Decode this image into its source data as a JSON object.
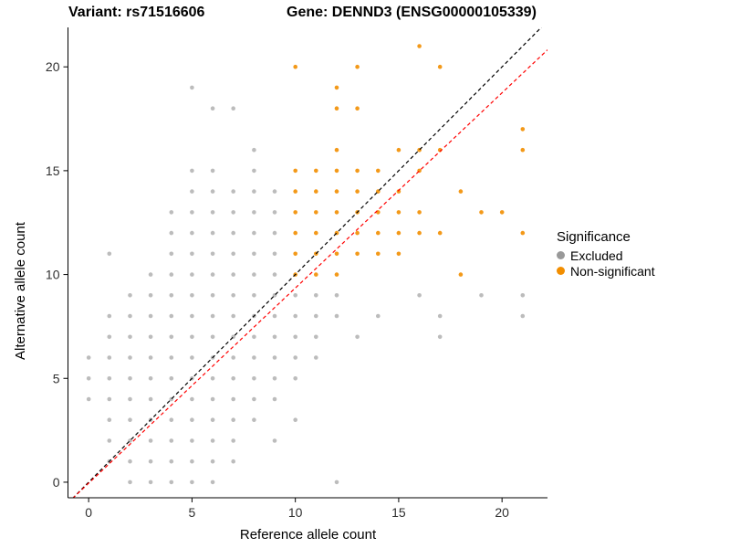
{
  "chart_data": {
    "type": "scatter",
    "title_left": "Variant: rs71516606",
    "title_right": "Gene: DENND3 (ENSG00000105339)",
    "xlabel": "Reference allele count",
    "ylabel": "Alternative allele count",
    "xlim": [
      -1,
      22.2
    ],
    "ylim": [
      -0.75,
      21.9
    ],
    "xticks": [
      "0",
      "5",
      "10",
      "15",
      "20"
    ],
    "xtick_values": [
      0,
      5,
      10,
      15,
      20
    ],
    "yticks": [
      "0",
      "5",
      "10",
      "15",
      "20"
    ],
    "ytick_values": [
      0,
      5,
      10,
      15,
      20
    ],
    "grid": false,
    "background": "#FFFFFF",
    "legend": {
      "title": "Significance",
      "position": "right",
      "entries": [
        {
          "label": "Excluded",
          "color": "#999999"
        },
        {
          "label": "Non-significant",
          "color": "#F28E00"
        }
      ]
    },
    "lines": [
      {
        "name": "identity-line",
        "color": "#000000",
        "dash": "4,3",
        "slope": 1.0,
        "intercept": 0.0
      },
      {
        "name": "fit-line",
        "color": "#FF0000",
        "dash": "4,3",
        "slope": 0.94,
        "intercept": -0.05
      }
    ],
    "series": [
      {
        "name": "Excluded",
        "color": "#7A7A7A",
        "opacity": 0.5,
        "points": [
          [
            2,
            0
          ],
          [
            3,
            0
          ],
          [
            4,
            0
          ],
          [
            5,
            0
          ],
          [
            6,
            0
          ],
          [
            12,
            0
          ],
          [
            1,
            1
          ],
          [
            2,
            1
          ],
          [
            3,
            1
          ],
          [
            4,
            1
          ],
          [
            5,
            1
          ],
          [
            6,
            1
          ],
          [
            7,
            1
          ],
          [
            1,
            2
          ],
          [
            2,
            2
          ],
          [
            3,
            2
          ],
          [
            4,
            2
          ],
          [
            5,
            2
          ],
          [
            6,
            2
          ],
          [
            7,
            2
          ],
          [
            9,
            2
          ],
          [
            1,
            3
          ],
          [
            2,
            3
          ],
          [
            3,
            3
          ],
          [
            4,
            3
          ],
          [
            5,
            3
          ],
          [
            6,
            3
          ],
          [
            7,
            3
          ],
          [
            8,
            3
          ],
          [
            10,
            3
          ],
          [
            0,
            4
          ],
          [
            1,
            4
          ],
          [
            2,
            4
          ],
          [
            3,
            4
          ],
          [
            4,
            4
          ],
          [
            5,
            4
          ],
          [
            6,
            4
          ],
          [
            7,
            4
          ],
          [
            8,
            4
          ],
          [
            9,
            4
          ],
          [
            0,
            5
          ],
          [
            1,
            5
          ],
          [
            2,
            5
          ],
          [
            3,
            5
          ],
          [
            4,
            5
          ],
          [
            5,
            5
          ],
          [
            6,
            5
          ],
          [
            7,
            5
          ],
          [
            8,
            5
          ],
          [
            9,
            5
          ],
          [
            10,
            5
          ],
          [
            0,
            6
          ],
          [
            1,
            6
          ],
          [
            2,
            6
          ],
          [
            3,
            6
          ],
          [
            4,
            6
          ],
          [
            5,
            6
          ],
          [
            6,
            6
          ],
          [
            7,
            6
          ],
          [
            8,
            6
          ],
          [
            9,
            6
          ],
          [
            10,
            6
          ],
          [
            11,
            6
          ],
          [
            1,
            7
          ],
          [
            2,
            7
          ],
          [
            3,
            7
          ],
          [
            4,
            7
          ],
          [
            5,
            7
          ],
          [
            6,
            7
          ],
          [
            7,
            7
          ],
          [
            8,
            7
          ],
          [
            9,
            7
          ],
          [
            10,
            7
          ],
          [
            11,
            7
          ],
          [
            13,
            7
          ],
          [
            17,
            7
          ],
          [
            1,
            8
          ],
          [
            2,
            8
          ],
          [
            3,
            8
          ],
          [
            4,
            8
          ],
          [
            5,
            8
          ],
          [
            6,
            8
          ],
          [
            7,
            8
          ],
          [
            8,
            8
          ],
          [
            9,
            8
          ],
          [
            10,
            8
          ],
          [
            11,
            8
          ],
          [
            12,
            8
          ],
          [
            14,
            8
          ],
          [
            17,
            8
          ],
          [
            21,
            8
          ],
          [
            2,
            9
          ],
          [
            3,
            9
          ],
          [
            4,
            9
          ],
          [
            5,
            9
          ],
          [
            6,
            9
          ],
          [
            7,
            9
          ],
          [
            8,
            9
          ],
          [
            9,
            9
          ],
          [
            10,
            9
          ],
          [
            11,
            9
          ],
          [
            12,
            9
          ],
          [
            16,
            9
          ],
          [
            19,
            9
          ],
          [
            21,
            9
          ],
          [
            3,
            10
          ],
          [
            4,
            10
          ],
          [
            5,
            10
          ],
          [
            6,
            10
          ],
          [
            7,
            10
          ],
          [
            8,
            10
          ],
          [
            9,
            10
          ],
          [
            1,
            11
          ],
          [
            4,
            11
          ],
          [
            5,
            11
          ],
          [
            6,
            11
          ],
          [
            7,
            11
          ],
          [
            8,
            11
          ],
          [
            9,
            11
          ],
          [
            4,
            12
          ],
          [
            5,
            12
          ],
          [
            6,
            12
          ],
          [
            7,
            12
          ],
          [
            8,
            12
          ],
          [
            9,
            12
          ],
          [
            4,
            13
          ],
          [
            5,
            13
          ],
          [
            6,
            13
          ],
          [
            7,
            13
          ],
          [
            8,
            13
          ],
          [
            9,
            13
          ],
          [
            5,
            14
          ],
          [
            6,
            14
          ],
          [
            7,
            14
          ],
          [
            8,
            14
          ],
          [
            9,
            14
          ],
          [
            5,
            15
          ],
          [
            6,
            15
          ],
          [
            8,
            15
          ],
          [
            8,
            16
          ],
          [
            6,
            18
          ],
          [
            7,
            18
          ],
          [
            5,
            19
          ]
        ]
      },
      {
        "name": "Non-significant",
        "color": "#F28E00",
        "opacity": 0.9,
        "points": [
          [
            10,
            10
          ],
          [
            11,
            10
          ],
          [
            12,
            10
          ],
          [
            18,
            10
          ],
          [
            10,
            11
          ],
          [
            11,
            11
          ],
          [
            12,
            11
          ],
          [
            13,
            11
          ],
          [
            14,
            11
          ],
          [
            15,
            11
          ],
          [
            10,
            12
          ],
          [
            11,
            12
          ],
          [
            12,
            12
          ],
          [
            13,
            12
          ],
          [
            14,
            12
          ],
          [
            15,
            12
          ],
          [
            16,
            12
          ],
          [
            17,
            12
          ],
          [
            21,
            12
          ],
          [
            10,
            13
          ],
          [
            11,
            13
          ],
          [
            12,
            13
          ],
          [
            13,
            13
          ],
          [
            14,
            13
          ],
          [
            15,
            13
          ],
          [
            16,
            13
          ],
          [
            19,
            13
          ],
          [
            20,
            13
          ],
          [
            10,
            14
          ],
          [
            11,
            14
          ],
          [
            12,
            14
          ],
          [
            13,
            14
          ],
          [
            14,
            14
          ],
          [
            15,
            14
          ],
          [
            18,
            14
          ],
          [
            10,
            15
          ],
          [
            11,
            15
          ],
          [
            12,
            15
          ],
          [
            13,
            15
          ],
          [
            14,
            15
          ],
          [
            16,
            15
          ],
          [
            12,
            16
          ],
          [
            15,
            16
          ],
          [
            16,
            16
          ],
          [
            17,
            16
          ],
          [
            21,
            16
          ],
          [
            21,
            17
          ],
          [
            12,
            18
          ],
          [
            13,
            18
          ],
          [
            12,
            19
          ],
          [
            10,
            20
          ],
          [
            13,
            20
          ],
          [
            17,
            20
          ],
          [
            16,
            21
          ]
        ]
      }
    ]
  }
}
